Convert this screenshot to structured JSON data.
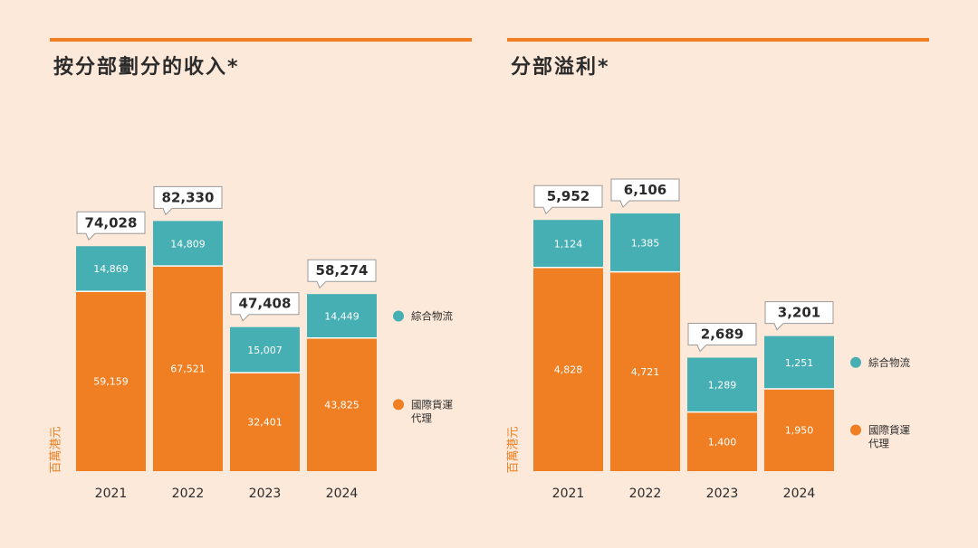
{
  "colors": {
    "background": "#fde9da",
    "accent": "#ef7f22",
    "teal": "#46afb3",
    "axis_text": "#2b2b2b",
    "ylabel": "#ef7f22"
  },
  "chart_data": [
    {
      "type": "bar",
      "stacked": true,
      "title": "按分部劃分的收入*",
      "ylabel": "百萬港元",
      "categories": [
        "2021",
        "2022",
        "2023",
        "2024"
      ],
      "series": [
        {
          "name": "國際貨運代理",
          "values": [
            59159,
            67521,
            32401,
            43825
          ],
          "labels": [
            "59,159",
            "67,521",
            "32,401",
            "43,825"
          ]
        },
        {
          "name": "綜合物流",
          "values": [
            14869,
            14809,
            15007,
            14449
          ],
          "labels": [
            "14,869",
            "14,809",
            "15,007",
            "14,449"
          ]
        }
      ],
      "totals": [
        74028,
        82330,
        47408,
        58274
      ],
      "total_labels": [
        "74,028",
        "82,330",
        "47,408",
        "58,274"
      ],
      "legend": {
        "position": "right",
        "items": [
          "綜合物流",
          "國際貨運代理"
        ]
      },
      "ylim": [
        0,
        100000
      ]
    },
    {
      "type": "bar",
      "stacked": true,
      "title": "分部溢利*",
      "ylabel": "百萬港元",
      "categories": [
        "2021",
        "2022",
        "2023",
        "2024"
      ],
      "series": [
        {
          "name": "國際貨運代理",
          "values": [
            4828,
            4721,
            1400,
            1950
          ],
          "labels": [
            "4,828",
            "4,721",
            "1,400",
            "1,950"
          ]
        },
        {
          "name": "綜合物流",
          "values": [
            1124,
            1385,
            1289,
            1251
          ],
          "labels": [
            "1,124",
            "1,385",
            "1,289",
            "1,251"
          ]
        }
      ],
      "totals": [
        5952,
        6106,
        2689,
        3201
      ],
      "total_labels": [
        "5,952",
        "6,106",
        "2,689",
        "3,201"
      ],
      "legend": {
        "position": "right",
        "items": [
          "綜合物流",
          "國際貨運代理"
        ]
      },
      "ylim": [
        0,
        7200
      ]
    }
  ]
}
